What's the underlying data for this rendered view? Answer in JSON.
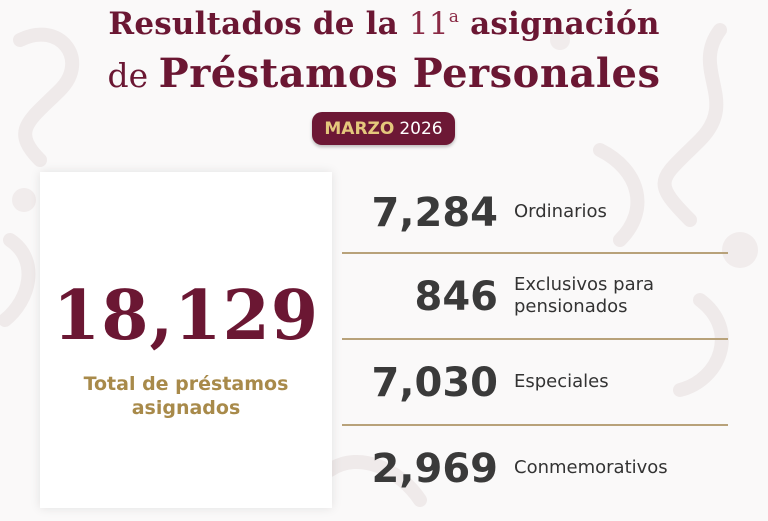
{
  "header": {
    "title_line1_prefix": "Resultados de la ",
    "title_line1_number": "11",
    "title_line1_sup": "a",
    "title_line1_suffix": " asignación",
    "title_line2_prefix": "de ",
    "title_line2_main": "Préstamos Personales"
  },
  "badge": {
    "month": "MARZO",
    "year": "2026"
  },
  "total": {
    "value": "18,129",
    "label_line1": "Total de préstamos",
    "label_line2": "asignados"
  },
  "breakdown": [
    {
      "value": "7,284",
      "label_line1": "Ordinarios",
      "label_line2": ""
    },
    {
      "value": "846",
      "label_line1": "Exclusivos para",
      "label_line2": "pensionados"
    },
    {
      "value": "7,030",
      "label_line1": "Especiales",
      "label_line2": ""
    },
    {
      "value": "2,969",
      "label_line1": "Conmemorativos",
      "label_line2": ""
    }
  ],
  "colors": {
    "primary": "#6b1733",
    "gold": "#a88a4a",
    "divider": "#b8a27a",
    "text_dark": "#3a3a3a"
  }
}
